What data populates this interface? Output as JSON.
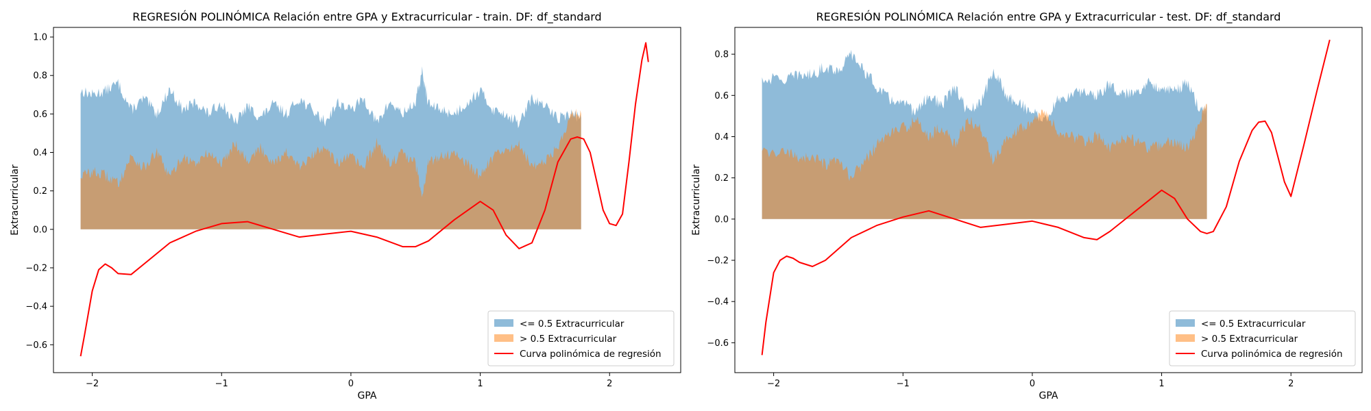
{
  "chart_data": [
    {
      "type": "area",
      "title": "REGRESIÓN POLINÓMICA Relación entre GPA y Extracurricular - train. DF: df_standard",
      "xlabel": "GPA",
      "ylabel": "Extracurricular",
      "xlim": [
        -2.3,
        2.55
      ],
      "ylim": [
        -0.745,
        1.05
      ],
      "xticks": [
        -2,
        -1,
        0,
        1,
        2
      ],
      "yticks": [
        -0.6,
        -0.4,
        -0.2,
        0.0,
        0.2,
        0.4,
        0.6,
        0.8,
        1.0
      ],
      "legend_position": "lower right",
      "grid": false,
      "series": [
        {
          "name": "<= 0.5 Extracurricular",
          "kind": "area",
          "color": "#1f77b4",
          "opacity": 0.5,
          "x": [
            -2.09,
            -2.0,
            -1.9,
            -1.8,
            -1.7,
            -1.6,
            -1.5,
            -1.4,
            -1.3,
            -1.2,
            -1.1,
            -1.0,
            -0.9,
            -0.8,
            -0.7,
            -0.6,
            -0.5,
            -0.4,
            -0.3,
            -0.2,
            -0.1,
            0.0,
            0.1,
            0.2,
            0.3,
            0.4,
            0.5,
            0.55,
            0.6,
            0.7,
            0.8,
            0.9,
            1.0,
            1.1,
            1.2,
            1.3,
            1.4,
            1.5,
            1.6,
            1.7,
            1.78
          ],
          "y": [
            0.72,
            0.7,
            0.72,
            0.76,
            0.62,
            0.68,
            0.6,
            0.73,
            0.62,
            0.66,
            0.6,
            0.66,
            0.55,
            0.64,
            0.58,
            0.65,
            0.6,
            0.68,
            0.62,
            0.56,
            0.66,
            0.62,
            0.68,
            0.55,
            0.66,
            0.6,
            0.66,
            0.82,
            0.65,
            0.62,
            0.6,
            0.66,
            0.72,
            0.62,
            0.6,
            0.55,
            0.68,
            0.64,
            0.58,
            0.6,
            0.58
          ]
        },
        {
          "name": "> 0.5 Extracurricular",
          "kind": "area",
          "color": "#ff7f0e",
          "opacity": 0.5,
          "x": [
            -2.09,
            -2.0,
            -1.9,
            -1.8,
            -1.7,
            -1.6,
            -1.5,
            -1.4,
            -1.3,
            -1.2,
            -1.1,
            -1.0,
            -0.9,
            -0.8,
            -0.7,
            -0.6,
            -0.5,
            -0.4,
            -0.3,
            -0.2,
            -0.1,
            0.0,
            0.1,
            0.2,
            0.3,
            0.4,
            0.5,
            0.55,
            0.6,
            0.7,
            0.8,
            0.9,
            1.0,
            1.1,
            1.2,
            1.3,
            1.4,
            1.5,
            1.6,
            1.7,
            1.78
          ],
          "y": [
            0.28,
            0.3,
            0.28,
            0.24,
            0.38,
            0.32,
            0.4,
            0.27,
            0.38,
            0.34,
            0.4,
            0.34,
            0.45,
            0.36,
            0.42,
            0.35,
            0.4,
            0.32,
            0.38,
            0.44,
            0.34,
            0.38,
            0.32,
            0.45,
            0.34,
            0.4,
            0.34,
            0.18,
            0.35,
            0.38,
            0.4,
            0.34,
            0.28,
            0.38,
            0.4,
            0.45,
            0.32,
            0.36,
            0.42,
            0.6,
            0.6
          ]
        },
        {
          "name": "Curva polinómica de regresión",
          "kind": "line",
          "color": "#ff0000",
          "x": [
            -2.09,
            -2.06,
            -2.0,
            -1.95,
            -1.9,
            -1.85,
            -1.8,
            -1.7,
            -1.6,
            -1.4,
            -1.2,
            -1.0,
            -0.8,
            -0.6,
            -0.4,
            -0.2,
            0.0,
            0.2,
            0.4,
            0.5,
            0.6,
            0.8,
            1.0,
            1.1,
            1.2,
            1.3,
            1.4,
            1.5,
            1.6,
            1.7,
            1.75,
            1.8,
            1.85,
            1.9,
            1.95,
            2.0,
            2.05,
            2.1,
            2.15,
            2.2,
            2.25,
            2.28,
            2.3
          ],
          "y": [
            -0.66,
            -0.55,
            -0.32,
            -0.21,
            -0.18,
            -0.2,
            -0.23,
            -0.235,
            -0.18,
            -0.07,
            -0.01,
            0.03,
            0.04,
            0.0,
            -0.04,
            -0.025,
            -0.01,
            -0.04,
            -0.09,
            -0.09,
            -0.06,
            0.05,
            0.145,
            0.1,
            -0.03,
            -0.1,
            -0.07,
            0.1,
            0.35,
            0.47,
            0.48,
            0.47,
            0.4,
            0.25,
            0.1,
            0.03,
            0.02,
            0.08,
            0.35,
            0.65,
            0.88,
            0.97,
            0.87
          ]
        }
      ]
    },
    {
      "type": "area",
      "title": "REGRESIÓN POLINÓMICA Relación entre GPA y Extracurricular - test. DF: df_standard",
      "xlabel": "GPA",
      "ylabel": "Extracurricular",
      "xlim": [
        -2.3,
        2.55
      ],
      "ylim": [
        -0.745,
        0.93
      ],
      "xticks": [
        -2,
        -1,
        0,
        1,
        2
      ],
      "yticks": [
        -0.6,
        -0.4,
        -0.2,
        0.0,
        0.2,
        0.4,
        0.6,
        0.8
      ],
      "legend_position": "lower right",
      "grid": false,
      "series": [
        {
          "name": "<= 0.5 Extracurricular",
          "kind": "area",
          "color": "#1f77b4",
          "opacity": 0.5,
          "x": [
            -2.09,
            -1.9,
            -1.8,
            -1.7,
            -1.6,
            -1.5,
            -1.4,
            -1.3,
            -1.2,
            -1.1,
            -1.0,
            -0.9,
            -0.8,
            -0.7,
            -0.6,
            -0.5,
            -0.4,
            -0.3,
            -0.2,
            -0.1,
            0.0,
            0.1,
            0.2,
            0.3,
            0.4,
            0.5,
            0.6,
            0.7,
            0.8,
            0.9,
            1.0,
            1.1,
            1.2,
            1.3,
            1.35
          ],
          "y": [
            0.68,
            0.68,
            0.7,
            0.7,
            0.74,
            0.72,
            0.8,
            0.72,
            0.64,
            0.58,
            0.56,
            0.52,
            0.6,
            0.55,
            0.64,
            0.52,
            0.56,
            0.72,
            0.6,
            0.56,
            0.52,
            0.48,
            0.58,
            0.6,
            0.62,
            0.6,
            0.66,
            0.6,
            0.62,
            0.66,
            0.64,
            0.62,
            0.66,
            0.52,
            0.54
          ]
        },
        {
          "name": "> 0.5 Extracurricular",
          "kind": "area",
          "color": "#ff7f0e",
          "opacity": 0.5,
          "x": [
            -2.09,
            -1.9,
            -1.8,
            -1.7,
            -1.6,
            -1.5,
            -1.4,
            -1.3,
            -1.2,
            -1.1,
            -1.0,
            -0.9,
            -0.8,
            -0.7,
            -0.6,
            -0.5,
            -0.4,
            -0.3,
            -0.2,
            -0.1,
            0.0,
            0.1,
            0.2,
            0.3,
            0.4,
            0.5,
            0.6,
            0.7,
            0.8,
            0.9,
            1.0,
            1.1,
            1.2,
            1.3,
            1.35
          ],
          "y": [
            0.32,
            0.32,
            0.3,
            0.3,
            0.26,
            0.28,
            0.2,
            0.28,
            0.36,
            0.42,
            0.44,
            0.48,
            0.4,
            0.45,
            0.36,
            0.48,
            0.44,
            0.28,
            0.4,
            0.44,
            0.48,
            0.52,
            0.42,
            0.4,
            0.38,
            0.4,
            0.34,
            0.4,
            0.38,
            0.34,
            0.36,
            0.38,
            0.34,
            0.48,
            0.56
          ]
        },
        {
          "name": "Curva polinómica de regresión",
          "kind": "line",
          "color": "#ff0000",
          "x": [
            -2.09,
            -2.06,
            -2.0,
            -1.95,
            -1.9,
            -1.85,
            -1.8,
            -1.7,
            -1.6,
            -1.4,
            -1.2,
            -1.0,
            -0.8,
            -0.6,
            -0.4,
            -0.2,
            0.0,
            0.2,
            0.4,
            0.5,
            0.6,
            0.8,
            1.0,
            1.1,
            1.2,
            1.3,
            1.35,
            1.4,
            1.5,
            1.6,
            1.7,
            1.75,
            1.8,
            1.85,
            1.9,
            1.95,
            2.0,
            2.1,
            2.2,
            2.3
          ],
          "y": [
            -0.66,
            -0.5,
            -0.26,
            -0.2,
            -0.18,
            -0.19,
            -0.21,
            -0.23,
            -0.2,
            -0.09,
            -0.03,
            0.01,
            0.04,
            0.0,
            -0.04,
            -0.025,
            -0.01,
            -0.04,
            -0.09,
            -0.1,
            -0.06,
            0.04,
            0.14,
            0.1,
            0.0,
            -0.06,
            -0.07,
            -0.06,
            0.06,
            0.28,
            0.43,
            0.47,
            0.475,
            0.42,
            0.3,
            0.18,
            0.11,
            0.36,
            0.62,
            0.87
          ]
        }
      ]
    }
  ]
}
